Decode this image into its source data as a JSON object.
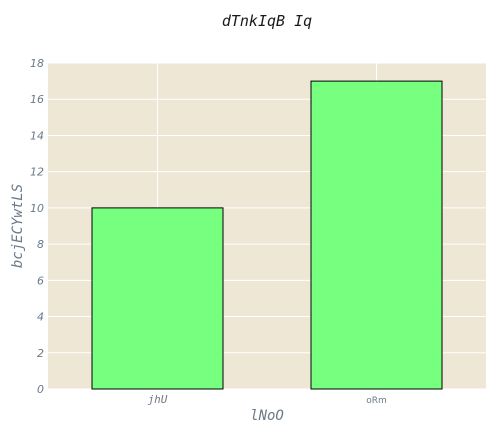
{
  "chart_data": {
    "type": "bar",
    "title": "dTnkIqB Iq",
    "xlabel": "lNoO",
    "ylabel": "bcjECYwtLS",
    "categories": [
      "jhU",
      "oRm"
    ],
    "values": [
      10,
      17
    ],
    "ylim": [
      0,
      18
    ],
    "yticks": [
      0,
      2,
      4,
      6,
      8,
      10,
      12,
      14,
      16,
      18
    ],
    "grid": true,
    "colors": {
      "bar_fill": "#77ff80",
      "bar_edge": "#000000",
      "plot_background": "#efe7d5",
      "grid": "#ffffff"
    }
  }
}
